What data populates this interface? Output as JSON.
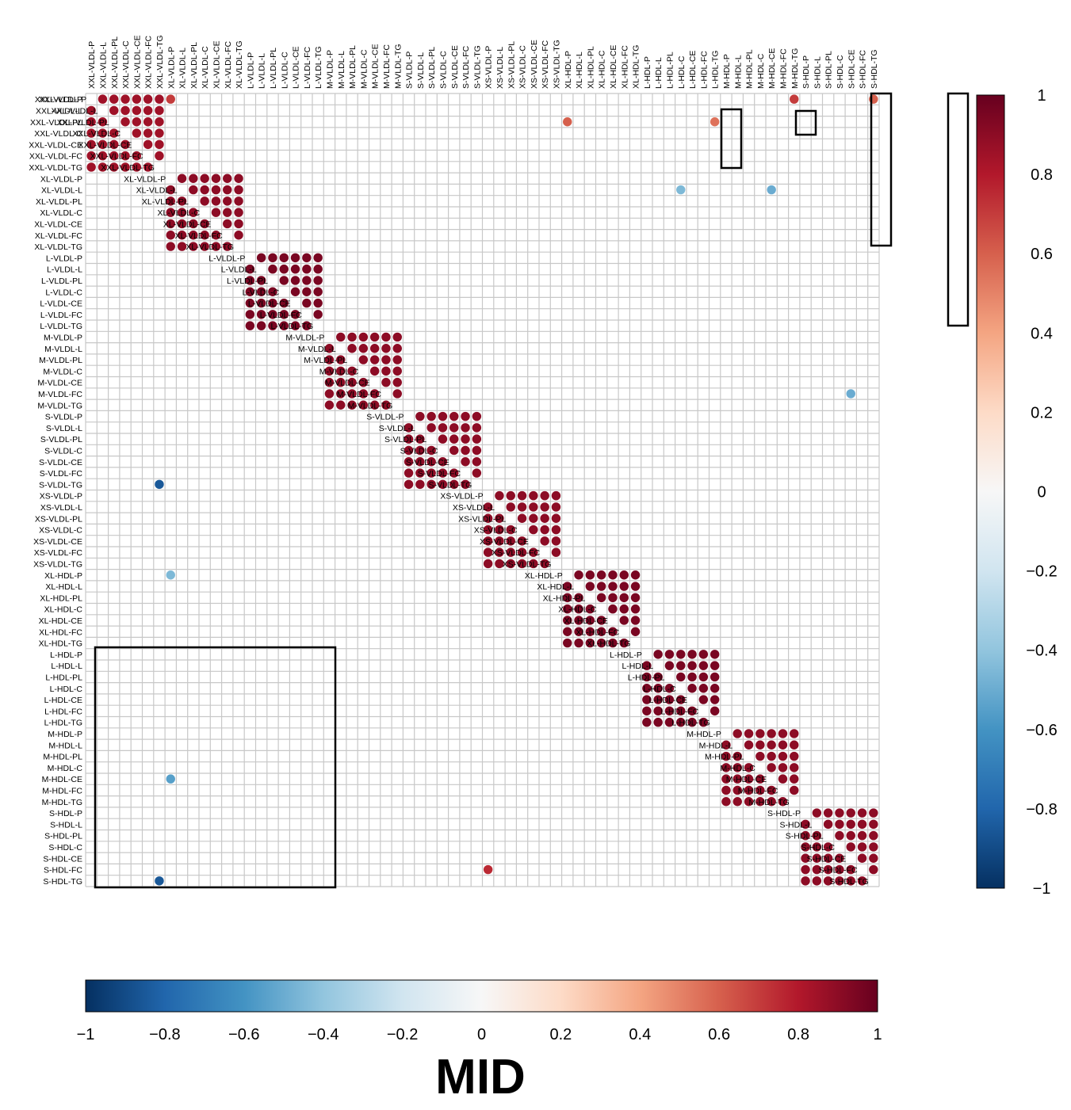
{
  "chart_data": [
    {
      "type": "heatmap",
      "title": "MID",
      "labels": [
        "XXL-VLDL-P",
        "XXL-VLDL-L",
        "XXL-VLDL-PL",
        "XXL-VLDL-C",
        "XXL-VLDL-CE",
        "XXL-VLDL-FC",
        "XXL-VLDL-TG",
        "XL-VLDL-P",
        "XL-VLDL-L",
        "XL-VLDL-PL",
        "XL-VLDL-C",
        "XL-VLDL-CE",
        "XL-VLDL-FC",
        "XL-VLDL-TG",
        "L-VLDL-P",
        "L-VLDL-L",
        "L-VLDL-PL",
        "L-VLDL-C",
        "L-VLDL-CE",
        "L-VLDL-FC",
        "L-VLDL-TG",
        "M-VLDL-P",
        "M-VLDL-L",
        "M-VLDL-PL",
        "M-VLDL-C",
        "M-VLDL-CE",
        "M-VLDL-FC",
        "M-VLDL-TG",
        "S-VLDL-P",
        "S-VLDL-L",
        "S-VLDL-PL",
        "S-VLDL-C",
        "S-VLDL-CE",
        "S-VLDL-FC",
        "S-VLDL-TG",
        "XS-VLDL-P",
        "XS-VLDL-L",
        "XS-VLDL-PL",
        "XS-VLDL-C",
        "XS-VLDL-CE",
        "XS-VLDL-FC",
        "XS-VLDL-TG",
        "XL-HDL-P",
        "XL-HDL-L",
        "XL-HDL-PL",
        "XL-HDL-C",
        "XL-HDL-CE",
        "XL-HDL-FC",
        "XL-HDL-TG",
        "L-HDL-P",
        "L-HDL-L",
        "L-HDL-PL",
        "L-HDL-C",
        "L-HDL-CE",
        "L-HDL-FC",
        "L-HDL-TG",
        "M-HDL-P",
        "M-HDL-L",
        "M-HDL-PL",
        "M-HDL-C",
        "M-HDL-CE",
        "M-HDL-FC",
        "M-HDL-TG",
        "S-HDL-P",
        "S-HDL-L",
        "S-HDL-PL",
        "S-HDL-C",
        "S-HDL-CE",
        "S-HDL-FC",
        "S-HDL-TG"
      ],
      "colorbar": {
        "ticks": [
          1,
          0.8,
          0.6,
          0.4,
          0.2,
          0,
          -0.2,
          -0.4,
          -0.6,
          -0.8,
          -1
        ],
        "tick_labels": [
          "1",
          "0.8",
          "0.6",
          "0.4",
          "0.2",
          "0",
          "−0.2",
          "−0.4",
          "−0.6",
          "−0.8",
          "−1"
        ],
        "range": [
          -1,
          1
        ],
        "colors": [
          "#053061",
          "#2166ac",
          "#4393c3",
          "#92c5de",
          "#d1e5f0",
          "#f7f7f7",
          "#fddbc7",
          "#f4a582",
          "#d6604d",
          "#b2182b",
          "#67001f"
        ]
      },
      "grid": true,
      "bands": [
        {
          "group": "XXL-VLDL",
          "value": 0.85
        },
        {
          "group": "XL-VLDL",
          "value": 0.9
        },
        {
          "group": "L-VLDL",
          "value": 0.95
        },
        {
          "group": "M-VLDL",
          "value": 0.9
        },
        {
          "group": "S-VLDL",
          "value": 0.9
        },
        {
          "group": "XS-VLDL",
          "value": 0.9
        },
        {
          "group": "XL-HDL",
          "value": 0.95
        },
        {
          "group": "L-HDL",
          "value": 0.95
        },
        {
          "group": "M-HDL",
          "value": 0.9
        },
        {
          "group": "S-HDL",
          "value": 0.9
        }
      ],
      "upper_triangle_points": [
        {
          "row": "XXL-VLDL-P",
          "col": "XL-VLDL-P",
          "value": 0.7
        },
        {
          "row": "XXL-VLDL-PL",
          "col": "XL-HDL-P",
          "value": 0.6
        },
        {
          "row": "XXL-VLDL-PL",
          "col": "L-HDL-TG",
          "value": 0.55
        },
        {
          "row": "XXL-VLDL-P",
          "col": "M-HDL-TG",
          "value": 0.7
        },
        {
          "row": "XXL-VLDL-P",
          "col": "S-HDL-TG",
          "value": 0.6
        },
        {
          "row": "XL-VLDL-L",
          "col": "L-HDL-C",
          "value": -0.45
        },
        {
          "row": "XL-VLDL-L",
          "col": "M-HDL-CE",
          "value": -0.5
        },
        {
          "row": "M-VLDL-FC",
          "col": "S-HDL-CE",
          "value": -0.5
        }
      ],
      "lower_triangle_points": [
        {
          "row": "XL-HDL-P",
          "col": "XL-VLDL-P",
          "value": -0.45
        },
        {
          "row": "M-HDL-CE",
          "col": "XL-VLDL-P",
          "value": -0.55
        },
        {
          "row": "S-VLDL-TG",
          "col": "XXL-VLDL-TG",
          "value": -0.85
        },
        {
          "row": "S-HDL-TG",
          "col": "XXL-VLDL-TG",
          "value": -0.85
        },
        {
          "row": "S-HDL-FC",
          "col": "XS-VLDL-P",
          "value": 0.75
        }
      ]
    },
    {
      "type": "heatmap-colorbar",
      "orientation": "horizontal",
      "range": [
        -1,
        1
      ],
      "tick_labels": [
        "−1",
        "−0.8",
        "−0.6",
        "−0.4",
        "−0.2",
        "0",
        "0.2",
        "0.4",
        "0.6",
        "0.8",
        "1"
      ]
    }
  ]
}
